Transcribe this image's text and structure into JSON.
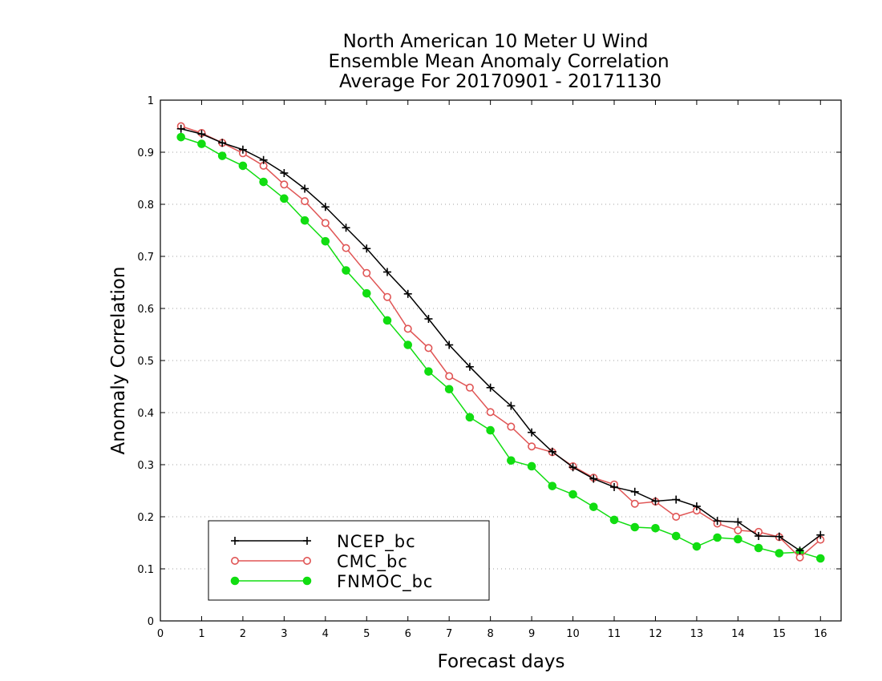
{
  "chart_data": {
    "type": "line",
    "title": [
      "North American 10 Meter U Wind",
      "Ensemble Mean Anomaly Correlation",
      "Average For 20170901 - 20171130"
    ],
    "xlabel": "Forecast days",
    "ylabel": "Anomaly Correlation",
    "xlim": [
      0,
      16.5
    ],
    "ylim": [
      0,
      1
    ],
    "xticks": [
      0,
      1,
      2,
      3,
      4,
      5,
      6,
      7,
      8,
      9,
      10,
      11,
      12,
      13,
      14,
      15,
      16
    ],
    "xtick_labels": [
      "0",
      "1",
      "2",
      "3",
      "4",
      "5",
      "6",
      "7",
      "8",
      "9",
      "10",
      "11",
      "12",
      "13",
      "14",
      "15",
      "16"
    ],
    "yticks": [
      0,
      0.1,
      0.2,
      0.3,
      0.4,
      0.5,
      0.6,
      0.7,
      0.8,
      0.9,
      1
    ],
    "ytick_labels": [
      "0",
      "0.1",
      "0.2",
      "0.3",
      "0.4",
      "0.5",
      "0.6",
      "0.7",
      "0.8",
      "0.9",
      "1"
    ],
    "grid": "horizontal dotted",
    "legend_position": "bottom-left",
    "x": [
      0.5,
      1,
      1.5,
      2,
      2.5,
      3,
      3.5,
      4,
      4.5,
      5,
      5.5,
      6,
      6.5,
      7,
      7.5,
      8,
      8.5,
      9,
      9.5,
      10,
      10.5,
      11,
      11.5,
      12,
      12.5,
      13,
      13.5,
      14,
      14.5,
      15,
      15.5,
      16
    ],
    "series": [
      {
        "name": "NCEP_bc",
        "color": "#000000",
        "marker": "plus",
        "values": [
          0.945,
          0.935,
          0.918,
          0.905,
          0.885,
          0.86,
          0.83,
          0.795,
          0.755,
          0.715,
          0.67,
          0.628,
          0.58,
          0.53,
          0.488,
          0.448,
          0.413,
          0.362,
          0.325,
          0.295,
          0.273,
          0.257,
          0.248,
          0.23,
          0.233,
          0.22,
          0.192,
          0.19,
          0.163,
          0.162,
          0.135,
          0.165
        ]
      },
      {
        "name": "CMC_bc",
        "color": "#e05555",
        "marker": "open-circle",
        "values": [
          0.95,
          0.937,
          0.918,
          0.898,
          0.874,
          0.838,
          0.806,
          0.764,
          0.716,
          0.668,
          0.622,
          0.561,
          0.524,
          0.47,
          0.448,
          0.401,
          0.373,
          0.335,
          0.324,
          0.297,
          0.275,
          0.262,
          0.225,
          0.229,
          0.2,
          0.212,
          0.187,
          0.174,
          0.171,
          0.161,
          0.122,
          0.156
        ]
      },
      {
        "name": "FNMOC_bc",
        "color": "#11dd11",
        "marker": "filled-circle",
        "values": [
          0.929,
          0.916,
          0.893,
          0.874,
          0.843,
          0.811,
          0.769,
          0.729,
          0.673,
          0.629,
          0.577,
          0.53,
          0.479,
          0.445,
          0.391,
          0.366,
          0.308,
          0.297,
          0.259,
          0.243,
          0.219,
          0.194,
          0.18,
          0.178,
          0.163,
          0.143,
          0.16,
          0.157,
          0.14,
          0.13,
          0.132,
          0.12
        ]
      }
    ]
  }
}
